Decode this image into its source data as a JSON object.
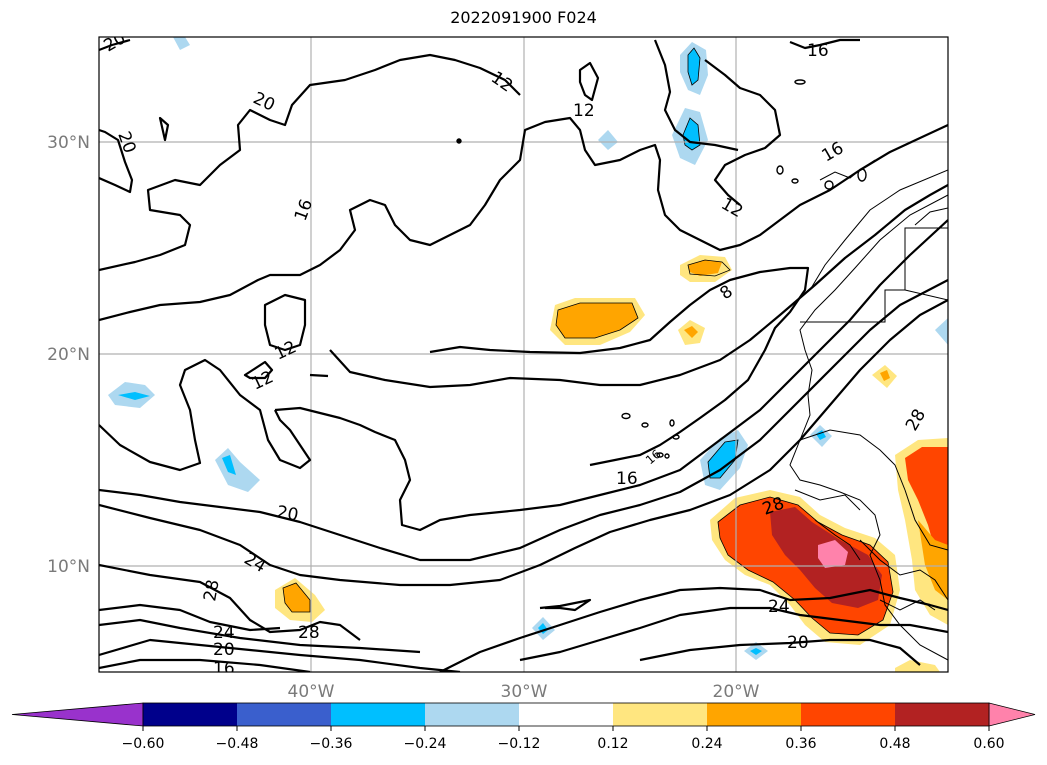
{
  "title": "2022091900 F024",
  "map": {
    "lon_range": [
      -50,
      -10
    ],
    "lat_range": [
      5,
      35
    ],
    "gridlines": true,
    "lon_labels": [
      "40°W",
      "30°W",
      "20°W"
    ],
    "lat_labels": [
      "30°N",
      "20°N",
      "10°N"
    ]
  },
  "contour_labels": [
    "20",
    "12",
    "20",
    "20",
    "16",
    "12",
    "12",
    "12",
    "8",
    "16",
    "12",
    "16",
    "20",
    "24",
    "28",
    "24",
    "20",
    "16",
    "28",
    "24",
    "20",
    "28",
    "16"
  ],
  "colorbar": {
    "orientation": "horizontal",
    "extend": "both",
    "ticks": [
      "−0.60",
      "−0.48",
      "−0.36",
      "−0.24",
      "−0.12",
      "0.12",
      "0.24",
      "0.36",
      "0.48",
      "0.60"
    ],
    "colors": [
      "#9932CC",
      "#00008B",
      "#3A5FCD",
      "#00BFFF",
      "#ADD8F0",
      "#FFFFFF",
      "#FFE680",
      "#FFA500",
      "#FF4500",
      "#B22222",
      "#FF82AB"
    ]
  }
}
